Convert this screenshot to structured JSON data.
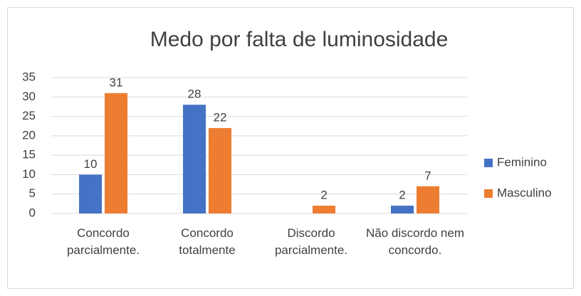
{
  "chart_data": {
    "type": "bar",
    "title": "Medo por falta de luminosidade",
    "categories": [
      "Concordo parcialmente.",
      "Concordo totalmente",
      "Discordo parcialmente.",
      "Não discordo nem concordo."
    ],
    "series": [
      {
        "name": "Feminino",
        "color": "#4472c4",
        "values": [
          10,
          28,
          null,
          2
        ]
      },
      {
        "name": "Masculino",
        "color": "#ed7d31",
        "values": [
          31,
          22,
          2,
          7
        ]
      }
    ],
    "ylim": [
      0,
      35
    ],
    "yticks": [
      0,
      5,
      10,
      15,
      20,
      25,
      30,
      35
    ],
    "grid": true,
    "legend": "right"
  }
}
